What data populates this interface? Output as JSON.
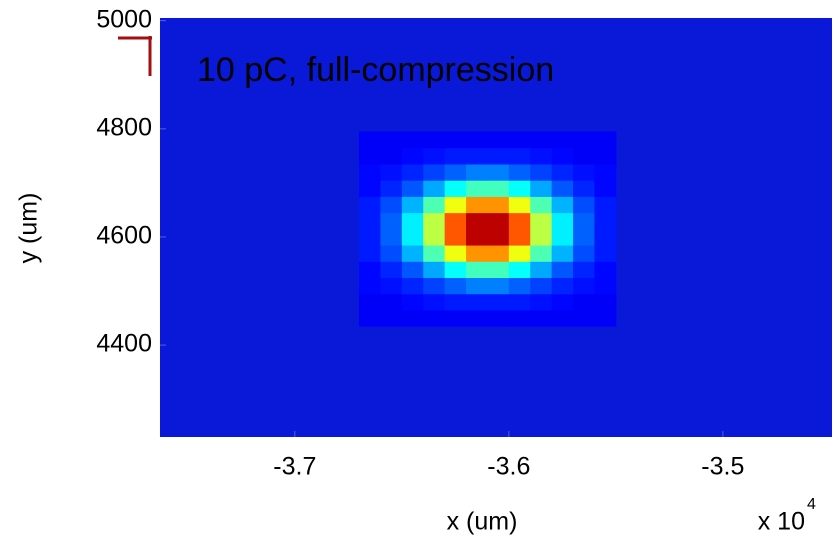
{
  "chart_data": {
    "type": "heatmap",
    "annotation": "10 pC, full-compression",
    "annotation_color": "#ffff00",
    "xlabel": "x (um)",
    "ylabel": "y (um)",
    "x_multiplier": {
      "base": "x 10",
      "exponent": "4"
    },
    "xlim": [
      -37630,
      -34490
    ],
    "ylim": [
      4230,
      5005
    ],
    "xticks": [
      {
        "value": -37000,
        "label": "-3.7"
      },
      {
        "value": -36000,
        "label": "-3.6"
      },
      {
        "value": -35000,
        "label": "-3.5"
      }
    ],
    "yticks": [
      4400,
      4600,
      4800,
      5000
    ],
    "grid": false,
    "colormap": "jet",
    "clim": [
      0,
      1
    ],
    "background_color": "#0a18d8",
    "xbins": [
      -36700,
      -36600,
      -36500,
      -36400,
      -36300,
      -36200,
      -36100,
      -36000,
      -35900,
      -35800,
      -35700,
      -35600,
      -35500
    ],
    "ybins": [
      4435,
      4465,
      4495,
      4525,
      4555,
      4585,
      4615,
      4645,
      4675,
      4705,
      4735,
      4765,
      4795
    ],
    "z": [
      [
        0.12,
        0.12,
        0.12,
        0.12,
        0.12,
        0.12,
        0.12,
        0.12,
        0.12,
        0.12,
        0.12,
        0.12
      ],
      [
        0.12,
        0.12,
        0.13,
        0.14,
        0.15,
        0.15,
        0.15,
        0.15,
        0.14,
        0.13,
        0.12,
        0.12
      ],
      [
        0.13,
        0.14,
        0.16,
        0.19,
        0.22,
        0.25,
        0.25,
        0.22,
        0.19,
        0.16,
        0.14,
        0.13
      ],
      [
        0.13,
        0.16,
        0.21,
        0.29,
        0.38,
        0.44,
        0.44,
        0.38,
        0.29,
        0.21,
        0.16,
        0.13
      ],
      [
        0.15,
        0.2,
        0.3,
        0.45,
        0.61,
        0.73,
        0.73,
        0.61,
        0.45,
        0.3,
        0.2,
        0.15
      ],
      [
        0.15,
        0.22,
        0.36,
        0.56,
        0.79,
        0.94,
        0.94,
        0.79,
        0.56,
        0.36,
        0.22,
        0.15
      ],
      [
        0.15,
        0.22,
        0.36,
        0.56,
        0.79,
        0.94,
        0.94,
        0.79,
        0.56,
        0.36,
        0.22,
        0.15
      ],
      [
        0.15,
        0.2,
        0.3,
        0.45,
        0.61,
        0.73,
        0.73,
        0.61,
        0.45,
        0.3,
        0.2,
        0.15
      ],
      [
        0.13,
        0.16,
        0.21,
        0.29,
        0.38,
        0.44,
        0.44,
        0.38,
        0.29,
        0.21,
        0.16,
        0.13
      ],
      [
        0.13,
        0.14,
        0.16,
        0.19,
        0.22,
        0.25,
        0.25,
        0.22,
        0.19,
        0.16,
        0.14,
        0.13
      ],
      [
        0.12,
        0.12,
        0.13,
        0.14,
        0.15,
        0.15,
        0.15,
        0.15,
        0.14,
        0.13,
        0.12,
        0.12
      ],
      [
        0.12,
        0.12,
        0.12,
        0.12,
        0.12,
        0.12,
        0.12,
        0.12,
        0.12,
        0.12,
        0.12,
        0.12
      ]
    ]
  }
}
